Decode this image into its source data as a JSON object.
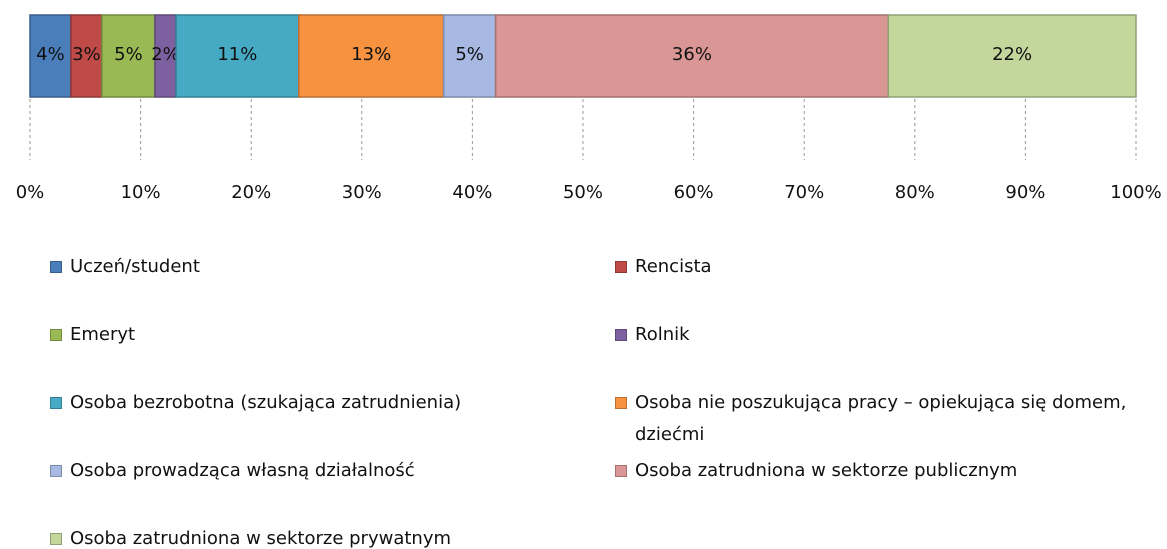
{
  "chart_data": {
    "type": "bar",
    "orientation": "horizontal",
    "stacked": true,
    "categories": [
      null
    ],
    "xlim": [
      0,
      100
    ],
    "xticks": [
      {
        "value": 0,
        "label": "0%"
      },
      {
        "value": 10,
        "label": "10%"
      },
      {
        "value": 20,
        "label": "20%"
      },
      {
        "value": 30,
        "label": "30%"
      },
      {
        "value": 40,
        "label": "40%"
      },
      {
        "value": 50,
        "label": "50%"
      },
      {
        "value": 60,
        "label": "60%"
      },
      {
        "value": 70,
        "label": "70%"
      },
      {
        "value": 80,
        "label": "80%"
      },
      {
        "value": 90,
        "label": "90%"
      },
      {
        "value": 100,
        "label": "100%"
      }
    ],
    "grid": true,
    "legend": "bottom",
    "series": [
      {
        "name": "Uczeń/student",
        "color": "#4a7ebb",
        "values": [
          3.7
        ],
        "value_labels": [
          "4%"
        ]
      },
      {
        "name": "Rencista",
        "color": "#be4b48",
        "values": [
          2.8
        ],
        "value_labels": [
          "3%"
        ]
      },
      {
        "name": "Emeryt",
        "color": "#98b954",
        "values": [
          4.8
        ],
        "value_labels": [
          "5%"
        ]
      },
      {
        "name": "Rolnik",
        "color": "#7d60a0",
        "values": [
          1.9
        ],
        "value_labels": [
          "2%"
        ]
      },
      {
        "name": "Osoba bezrobotna (szukająca zatrudnienia)",
        "color": "#46aac5",
        "values": [
          11.1
        ],
        "value_labels": [
          "11%"
        ]
      },
      {
        "name": "Osoba nie poszukująca pracy – opiekująca się domem, dziećmi",
        "color": "#f69240",
        "values": [
          13.1
        ],
        "value_labels": [
          "13%"
        ]
      },
      {
        "name": "Osoba prowadząca własną działalność",
        "color": "#a7b9e3",
        "values": [
          4.7
        ],
        "value_labels": [
          "5%"
        ]
      },
      {
        "name": "Osoba zatrudniona w sektorze publicznym",
        "color": "#d99694",
        "values": [
          35.5
        ],
        "value_labels": [
          "36%"
        ]
      },
      {
        "name": "Osoba zatrudniona w sektorze prywatnym",
        "color": "#c3d69b",
        "values": [
          22.4
        ],
        "value_labels": [
          "22%"
        ]
      }
    ]
  }
}
